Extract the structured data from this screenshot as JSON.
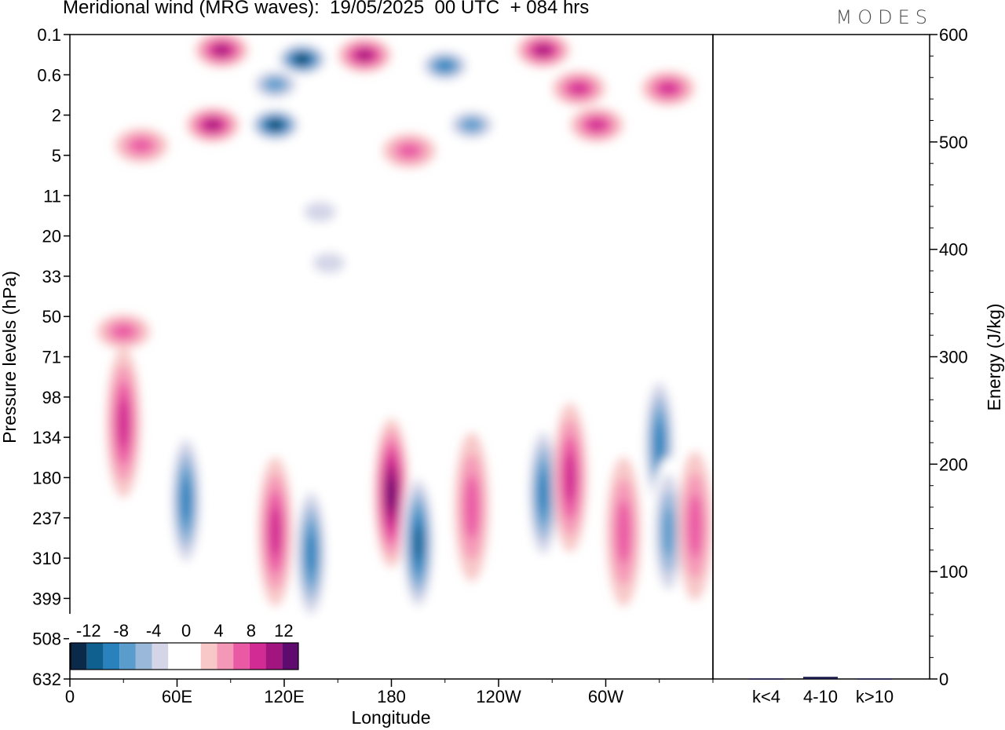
{
  "header": {
    "title": "Meridional wind (MRG waves):  19/05/2025  00 UTC  + 084 hrs",
    "logo": "MODES"
  },
  "chart_data": [
    {
      "type": "heatmap",
      "title": "Meridional wind (MRG waves):  19/05/2025  00 UTC  + 084 hrs",
      "xlabel": "Longitude",
      "ylabel": "Pressure levels (hPa)",
      "x_ticks": [
        "0",
        "60E",
        "120E",
        "180",
        "120W",
        "60W"
      ],
      "x_tick_values": [
        0,
        60,
        120,
        180,
        240,
        300
      ],
      "x_range": [
        0,
        360
      ],
      "y_ticks": [
        "0.1",
        "0.6",
        "2",
        "5",
        "11",
        "20",
        "33",
        "50",
        "71",
        "98",
        "134",
        "180",
        "237",
        "310",
        "399",
        "508",
        "632"
      ],
      "colorbar": {
        "labels": [
          "-12",
          "-8",
          "-4",
          "0",
          "4",
          "8",
          "12"
        ],
        "levels": [
          -14,
          -12,
          -10,
          -8,
          -6,
          -4,
          -2,
          2,
          4,
          6,
          8,
          10,
          12,
          14
        ],
        "colors": [
          "#0b2a4a",
          "#0f5f8f",
          "#2a82bd",
          "#5a9ccc",
          "#9ab8da",
          "#d4d6e8",
          "#ffffff",
          "#ffffff",
          "#f8c8c8",
          "#f598b8",
          "#ea5aa4",
          "#d22b93",
          "#a3157e",
          "#5f0a6e"
        ]
      },
      "features": [
        {
          "lon": 40,
          "lev": 4,
          "value": 6
        },
        {
          "lon": 85,
          "lev": 0.2,
          "value": 10
        },
        {
          "lon": 80,
          "lev": 2.5,
          "value": 10
        },
        {
          "lon": 165,
          "lev": 0.25,
          "value": 10
        },
        {
          "lon": 265,
          "lev": 0.2,
          "value": 10
        },
        {
          "lon": 285,
          "lev": 0.9,
          "value": 8
        },
        {
          "lon": 335,
          "lev": 0.9,
          "value": 8
        },
        {
          "lon": 295,
          "lev": 2.5,
          "value": 8
        },
        {
          "lon": 190,
          "lev": 4.5,
          "value": 6
        },
        {
          "lon": 130,
          "lev": 0.3,
          "value": -14
        },
        {
          "lon": 115,
          "lev": 0.8,
          "value": -8
        },
        {
          "lon": 115,
          "lev": 2.5,
          "value": -14
        },
        {
          "lon": 210,
          "lev": 0.4,
          "value": -10
        },
        {
          "lon": 225,
          "lev": 2.5,
          "value": -8
        },
        {
          "lon": 140,
          "lev": 14,
          "value": -4
        },
        {
          "lon": 145,
          "lev": 28,
          "value": -2
        },
        {
          "lon": 30,
          "lev": 57,
          "value": 6
        },
        {
          "lon": 30,
          "lev": 120,
          "value": 8
        },
        {
          "lon": 65,
          "lev": 210,
          "value": -10
        },
        {
          "lon": 115,
          "lev": 260,
          "value": 8
        },
        {
          "lon": 135,
          "lev": 300,
          "value": -10
        },
        {
          "lon": 180,
          "lev": 200,
          "value": 12
        },
        {
          "lon": 195,
          "lev": 280,
          "value": -12
        },
        {
          "lon": 225,
          "lev": 220,
          "value": 6
        },
        {
          "lon": 265,
          "lev": 200,
          "value": -10
        },
        {
          "lon": 280,
          "lev": 180,
          "value": 8
        },
        {
          "lon": 310,
          "lev": 260,
          "value": 6
        },
        {
          "lon": 330,
          "lev": 140,
          "value": -10
        },
        {
          "lon": 335,
          "lev": 260,
          "value": -8
        },
        {
          "lon": 350,
          "lev": 250,
          "value": 6
        }
      ]
    },
    {
      "type": "bar",
      "categories": [
        "k<4",
        "4-10",
        "k>10"
      ],
      "values": [
        0.5,
        2,
        0.5
      ],
      "ylabel": "Energy (J/kg)",
      "ylim": [
        0,
        600
      ],
      "y_ticks": [
        "0",
        "100",
        "200",
        "300",
        "400",
        "500",
        "600"
      ],
      "y_tick_values": [
        0,
        100,
        200,
        300,
        400,
        500,
        600
      ],
      "bar_color": "#1a1a4a"
    }
  ]
}
